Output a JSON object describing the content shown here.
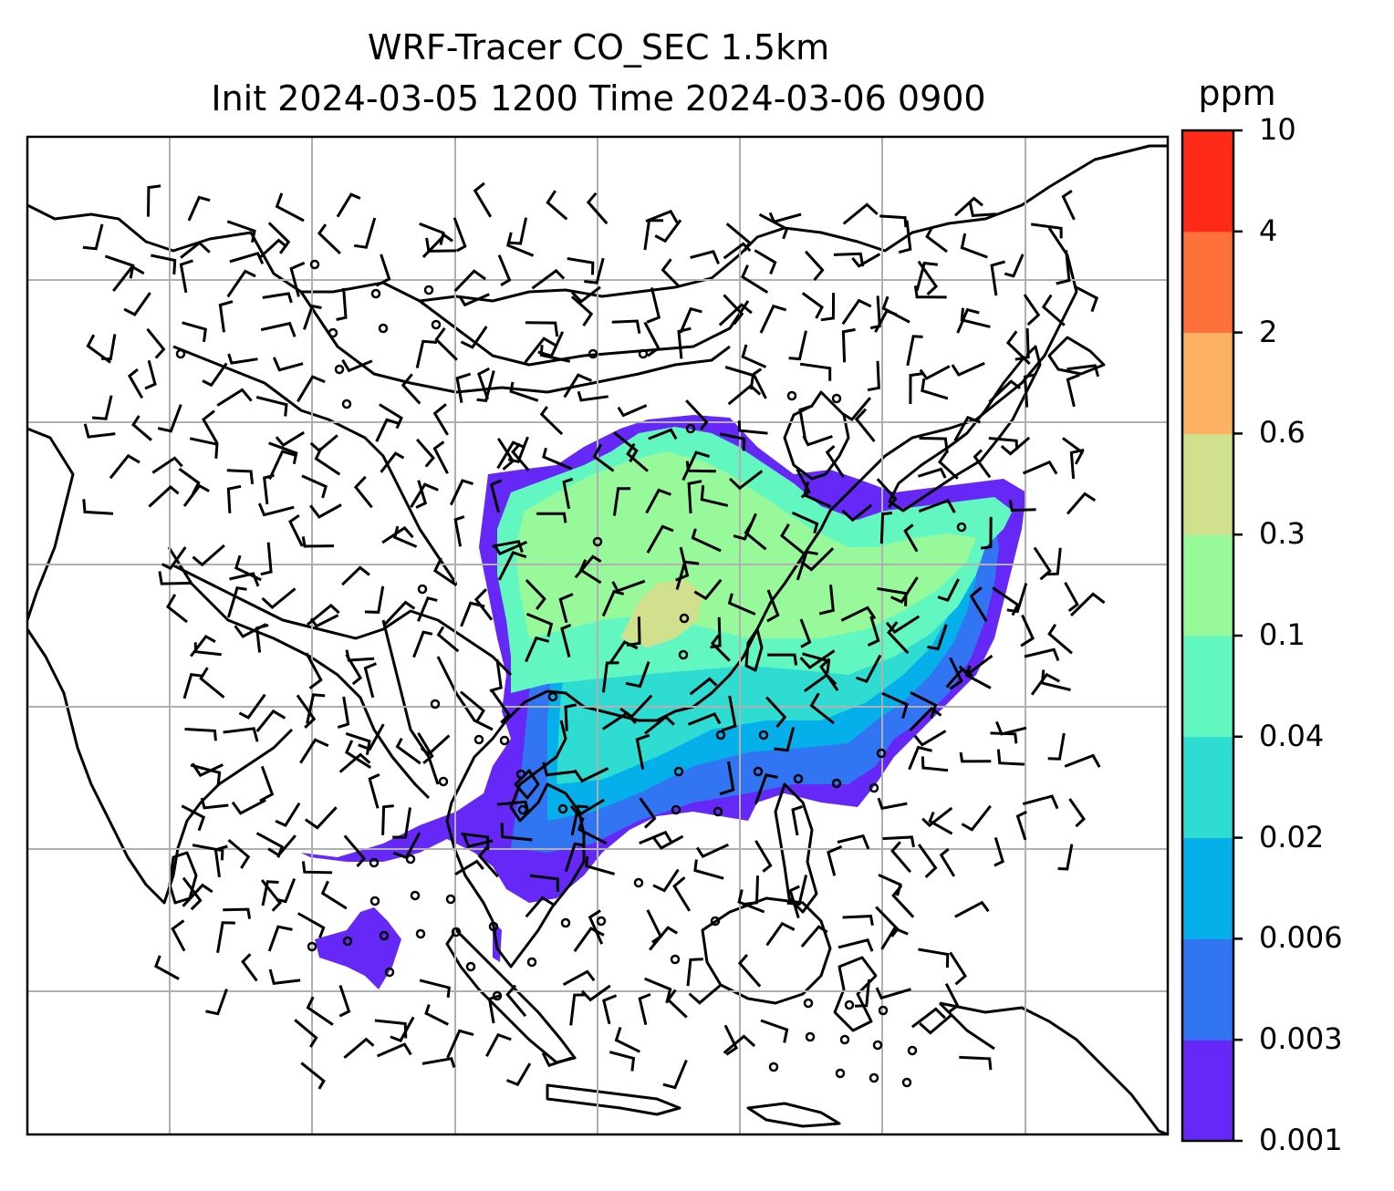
{
  "title": {
    "line1": "WRF-Tracer CO_SEC 1.5km",
    "line2": "Init 2024-03-05 1200 Time 2024-03-06 0900"
  },
  "colorbar": {
    "unit": "ppm",
    "levels": [
      "0.001",
      "0.003",
      "0.006",
      "0.02",
      "0.04",
      "0.1",
      "0.3",
      "0.6",
      "2",
      "4",
      "10"
    ],
    "colors": [
      "#6528f7",
      "#3175f2",
      "#05b0ea",
      "#2fdcd2",
      "#62f6c0",
      "#97f99a",
      "#d1e08c",
      "#fdb162",
      "#ff713b",
      "#ff2a18"
    ]
  },
  "map": {
    "type": "tracer concentration with wind barbs",
    "grid": true,
    "features": [
      "coastlines",
      "borders",
      "wind-barbs",
      "calm-circles"
    ]
  },
  "colors": {
    "coast": "#000000",
    "grid": "#b0b0b0",
    "frame": "#000000"
  }
}
